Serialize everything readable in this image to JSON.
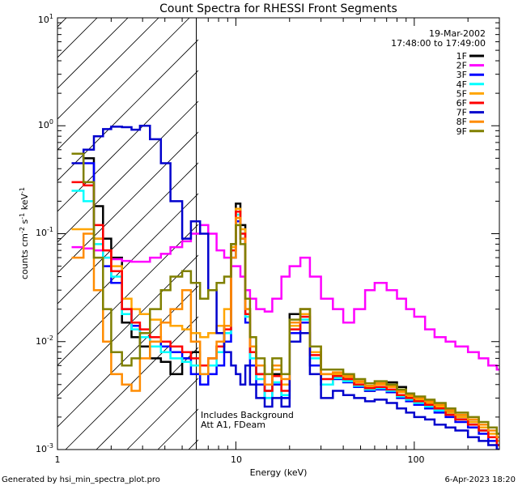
{
  "footer": {
    "generator": "Generated by hsi_min_spectra_plot.pro",
    "timestamp": "6-Apr-2023 18:20"
  },
  "chart_data": {
    "type": "line",
    "title": "Count Spectra for RHESSI Front Segments",
    "xlabel": "Energy (keV)",
    "ylabel": "counts cm",
    "ylabel_exp1": "-2",
    "ylabel_mid": " s",
    "ylabel_exp2": "-1",
    "ylabel_unit": " keV",
    "ylabel_exp3": "-1",
    "x_scale": "log",
    "y_scale": "log",
    "xlim": [
      1,
      300
    ],
    "ylim": [
      0.001,
      10
    ],
    "x_tick_labels": [
      "1",
      "10",
      "100"
    ],
    "y_tick_labels": [
      {
        "base": "10",
        "exp": "-3"
      },
      {
        "base": "10",
        "exp": "-2"
      },
      {
        "base": "10",
        "exp": "-1"
      },
      {
        "base": "10",
        "exp": "0"
      },
      {
        "base": "10",
        "exp": "1"
      }
    ],
    "date": "19-Mar-2002",
    "time_range": "17:48:00 to 17:49:00",
    "annotations": [
      "Includes Background",
      "Att A1, FDeam"
    ],
    "hatched_region_keV": [
      1,
      6
    ],
    "legend_position": "top-right",
    "series": [
      {
        "name": "1F",
        "color": "#000000",
        "x": [
          1.2,
          1.4,
          1.6,
          1.8,
          2.0,
          2.3,
          2.6,
          2.9,
          3.3,
          3.8,
          4.3,
          5.0,
          5.6,
          6.3,
          7.0,
          7.8,
          8.6,
          9.4,
          10.0,
          10.6,
          11.3,
          12.0,
          13.0,
          14.5,
          16.0,
          18.0,
          20.0,
          23.0,
          26.0,
          30.0,
          35.0,
          40.0,
          46.0,
          53.0,
          60.0,
          70.0,
          80.0,
          90.0,
          100.0,
          115.0,
          130.0,
          150.0,
          170.0,
          200.0,
          230.0,
          260.0,
          290.0
        ],
        "y": [
          0.55,
          0.5,
          0.18,
          0.09,
          0.06,
          0.015,
          0.011,
          0.009,
          0.007,
          0.0065,
          0.005,
          0.007,
          0.008,
          0.006,
          0.007,
          0.009,
          0.014,
          0.08,
          0.19,
          0.12,
          0.02,
          0.008,
          0.005,
          0.0035,
          0.005,
          0.003,
          0.018,
          0.02,
          0.008,
          0.004,
          0.005,
          0.0045,
          0.004,
          0.0035,
          0.004,
          0.0042,
          0.0038,
          0.0033,
          0.003,
          0.0028,
          0.0025,
          0.0022,
          0.002,
          0.0018,
          0.0015,
          0.0013,
          0.0011
        ]
      },
      {
        "name": "2F",
        "color": "#ff00ff",
        "x": [
          1.2,
          1.4,
          1.6,
          1.8,
          2.0,
          2.3,
          2.6,
          2.9,
          3.3,
          3.8,
          4.3,
          5.0,
          5.6,
          6.3,
          7.0,
          7.8,
          8.6,
          9.4,
          10.0,
          10.6,
          11.3,
          12.0,
          13.0,
          14.5,
          16.0,
          18.0,
          20.0,
          23.0,
          26.0,
          30.0,
          35.0,
          40.0,
          46.0,
          53.0,
          60.0,
          70.0,
          80.0,
          90.0,
          100.0,
          115.0,
          130.0,
          150.0,
          170.0,
          200.0,
          230.0,
          260.0,
          290.0
        ],
        "y": [
          0.075,
          0.073,
          0.07,
          0.06,
          0.058,
          0.056,
          0.055,
          0.055,
          0.06,
          0.065,
          0.075,
          0.085,
          0.1,
          0.12,
          0.1,
          0.07,
          0.06,
          0.05,
          0.05,
          0.04,
          0.03,
          0.025,
          0.02,
          0.019,
          0.025,
          0.04,
          0.05,
          0.06,
          0.04,
          0.025,
          0.02,
          0.015,
          0.02,
          0.03,
          0.035,
          0.03,
          0.025,
          0.02,
          0.017,
          0.013,
          0.011,
          0.01,
          0.009,
          0.008,
          0.007,
          0.006,
          0.0055
        ]
      },
      {
        "name": "3F",
        "color": "#0000ff",
        "x": [
          1.2,
          1.4,
          1.6,
          1.8,
          2.0,
          2.3,
          2.6,
          2.9,
          3.3,
          3.8,
          4.3,
          5.0,
          5.6,
          6.3,
          7.0,
          7.8,
          8.6,
          9.4,
          10.0,
          10.6,
          11.3,
          12.0,
          13.0,
          14.5,
          16.0,
          18.0,
          20.0,
          23.0,
          26.0,
          30.0,
          35.0,
          40.0,
          46.0,
          53.0,
          60.0,
          70.0,
          80.0,
          90.0,
          100.0,
          115.0,
          130.0,
          150.0,
          170.0,
          200.0,
          230.0,
          260.0,
          290.0
        ],
        "y": [
          0.55,
          0.45,
          0.09,
          0.05,
          0.035,
          0.02,
          0.014,
          0.012,
          0.01,
          0.009,
          0.008,
          0.007,
          0.005,
          0.004,
          0.005,
          0.006,
          0.01,
          0.06,
          0.13,
          0.09,
          0.015,
          0.006,
          0.004,
          0.003,
          0.004,
          0.003,
          0.012,
          0.015,
          0.006,
          0.004,
          0.0045,
          0.0042,
          0.0038,
          0.0035,
          0.0036,
          0.0034,
          0.003,
          0.0028,
          0.0026,
          0.0024,
          0.0022,
          0.002,
          0.0018,
          0.0016,
          0.0014,
          0.0012,
          0.001
        ]
      },
      {
        "name": "4F",
        "color": "#00ffff",
        "x": [
          1.2,
          1.4,
          1.6,
          1.8,
          2.0,
          2.3,
          2.6,
          2.9,
          3.3,
          3.8,
          4.3,
          5.0,
          5.6,
          6.3,
          7.0,
          7.8,
          8.6,
          9.4,
          10.0,
          10.6,
          11.3,
          12.0,
          13.0,
          14.5,
          16.0,
          18.0,
          20.0,
          23.0,
          26.0,
          30.0,
          35.0,
          40.0,
          46.0,
          53.0,
          60.0,
          70.0,
          80.0,
          90.0,
          100.0,
          115.0,
          130.0,
          150.0,
          170.0,
          200.0,
          230.0,
          260.0,
          290.0
        ],
        "y": [
          0.25,
          0.2,
          0.08,
          0.06,
          0.04,
          0.018,
          0.013,
          0.011,
          0.009,
          0.008,
          0.007,
          0.0065,
          0.006,
          0.005,
          0.006,
          0.008,
          0.012,
          0.07,
          0.15,
          0.1,
          0.017,
          0.007,
          0.0045,
          0.003,
          0.0042,
          0.0032,
          0.013,
          0.016,
          0.007,
          0.004,
          0.0046,
          0.0043,
          0.0039,
          0.0036,
          0.0037,
          0.0035,
          0.0031,
          0.0029,
          0.0027,
          0.0025,
          0.0023,
          0.0021,
          0.0019,
          0.0017,
          0.0015,
          0.0013,
          0.0011
        ]
      },
      {
        "name": "5F",
        "color": "#ffa500",
        "x": [
          1.2,
          1.4,
          1.6,
          1.8,
          2.0,
          2.3,
          2.6,
          2.9,
          3.3,
          3.8,
          4.3,
          5.0,
          5.6,
          6.3,
          7.0,
          7.8,
          8.6,
          9.4,
          10.0,
          10.6,
          11.3,
          12.0,
          13.0,
          14.5,
          16.0,
          18.0,
          20.0,
          23.0,
          26.0,
          30.0,
          35.0,
          40.0,
          46.0,
          53.0,
          60.0,
          70.0,
          80.0,
          90.0,
          100.0,
          115.0,
          130.0,
          150.0,
          170.0,
          200.0,
          230.0,
          260.0,
          290.0
        ],
        "y": [
          0.11,
          0.11,
          0.09,
          0.07,
          0.05,
          0.025,
          0.02,
          0.018,
          0.016,
          0.015,
          0.014,
          0.013,
          0.012,
          0.011,
          0.012,
          0.014,
          0.02,
          0.075,
          0.17,
          0.11,
          0.02,
          0.009,
          0.006,
          0.004,
          0.0055,
          0.004,
          0.014,
          0.018,
          0.008,
          0.005,
          0.005,
          0.0047,
          0.0042,
          0.0038,
          0.004,
          0.0038,
          0.0034,
          0.0031,
          0.0029,
          0.0027,
          0.0025,
          0.0022,
          0.002,
          0.0018,
          0.0016,
          0.0014,
          0.0012
        ]
      },
      {
        "name": "6F",
        "color": "#ff0000",
        "x": [
          1.2,
          1.4,
          1.6,
          1.8,
          2.0,
          2.3,
          2.6,
          2.9,
          3.3,
          3.8,
          4.3,
          5.0,
          5.6,
          6.3,
          7.0,
          7.8,
          8.6,
          9.4,
          10.0,
          10.6,
          11.3,
          12.0,
          13.0,
          14.5,
          16.0,
          18.0,
          20.0,
          23.0,
          26.0,
          30.0,
          35.0,
          40.0,
          46.0,
          53.0,
          60.0,
          70.0,
          80.0,
          90.0,
          100.0,
          115.0,
          130.0,
          150.0,
          170.0,
          200.0,
          230.0,
          260.0,
          290.0
        ],
        "y": [
          0.3,
          0.28,
          0.12,
          0.07,
          0.045,
          0.02,
          0.015,
          0.013,
          0.011,
          0.01,
          0.009,
          0.008,
          0.007,
          0.006,
          0.007,
          0.009,
          0.013,
          0.07,
          0.16,
          0.1,
          0.018,
          0.008,
          0.005,
          0.0035,
          0.0048,
          0.0035,
          0.013,
          0.017,
          0.0075,
          0.0045,
          0.0048,
          0.0045,
          0.004,
          0.0037,
          0.0038,
          0.0036,
          0.0032,
          0.003,
          0.0028,
          0.0026,
          0.0024,
          0.0021,
          0.0019,
          0.0017,
          0.0015,
          0.0013,
          0.0011
        ]
      },
      {
        "name": "7F",
        "color": "#0000cd",
        "x": [
          1.2,
          1.4,
          1.6,
          1.8,
          2.0,
          2.3,
          2.6,
          2.9,
          3.3,
          3.8,
          4.3,
          5.0,
          5.6,
          6.3,
          7.0,
          7.8,
          8.6,
          9.4,
          10.0,
          10.6,
          11.3,
          12.0,
          13.0,
          14.5,
          16.0,
          18.0,
          20.0,
          23.0,
          26.0,
          30.0,
          35.0,
          40.0,
          46.0,
          53.0,
          60.0,
          70.0,
          80.0,
          90.0,
          100.0,
          115.0,
          130.0,
          150.0,
          170.0,
          200.0,
          230.0,
          260.0,
          290.0
        ],
        "y": [
          0.45,
          0.6,
          0.8,
          0.93,
          0.98,
          0.97,
          0.92,
          1.0,
          0.75,
          0.45,
          0.2,
          0.09,
          0.13,
          0.1,
          0.03,
          0.012,
          0.008,
          0.006,
          0.005,
          0.004,
          0.006,
          0.004,
          0.003,
          0.0025,
          0.003,
          0.0025,
          0.01,
          0.012,
          0.005,
          0.003,
          0.0035,
          0.0032,
          0.003,
          0.0028,
          0.0029,
          0.0027,
          0.0024,
          0.0022,
          0.002,
          0.0019,
          0.0017,
          0.0016,
          0.0015,
          0.0013,
          0.0012,
          0.0011,
          0.001
        ]
      },
      {
        "name": "8F",
        "color": "#ff8c00",
        "x": [
          1.2,
          1.4,
          1.6,
          1.8,
          2.0,
          2.3,
          2.6,
          2.9,
          3.3,
          3.8,
          4.3,
          5.0,
          5.6,
          6.3,
          7.0,
          7.8,
          8.6,
          9.4,
          10.0,
          10.6,
          11.3,
          12.0,
          13.0,
          14.5,
          16.0,
          18.0,
          20.0,
          23.0,
          26.0,
          30.0,
          35.0,
          40.0,
          46.0,
          53.0,
          60.0,
          70.0,
          80.0,
          90.0,
          100.0,
          115.0,
          130.0,
          150.0,
          170.0,
          200.0,
          230.0,
          260.0,
          290.0
        ],
        "y": [
          0.06,
          0.1,
          0.03,
          0.01,
          0.005,
          0.004,
          0.0035,
          0.007,
          0.01,
          0.015,
          0.02,
          0.03,
          0.01,
          0.005,
          0.007,
          0.01,
          0.014,
          0.06,
          0.14,
          0.09,
          0.02,
          0.009,
          0.006,
          0.004,
          0.006,
          0.0045,
          0.015,
          0.02,
          0.009,
          0.005,
          0.0052,
          0.0048,
          0.0043,
          0.0039,
          0.0041,
          0.0039,
          0.0035,
          0.0032,
          0.003,
          0.0028,
          0.0026,
          0.0023,
          0.0021,
          0.0019,
          0.0017,
          0.0015,
          0.0013
        ]
      },
      {
        "name": "9F",
        "color": "#808000",
        "x": [
          1.2,
          1.4,
          1.6,
          1.8,
          2.0,
          2.3,
          2.6,
          2.9,
          3.3,
          3.8,
          4.3,
          5.0,
          5.6,
          6.3,
          7.0,
          7.8,
          8.6,
          9.4,
          10.0,
          10.6,
          11.3,
          12.0,
          13.0,
          14.5,
          16.0,
          18.0,
          20.0,
          23.0,
          26.0,
          30.0,
          35.0,
          40.0,
          46.0,
          53.0,
          60.0,
          70.0,
          80.0,
          90.0,
          100.0,
          115.0,
          130.0,
          150.0,
          170.0,
          200.0,
          230.0,
          260.0,
          290.0
        ],
        "y": [
          0.55,
          0.3,
          0.06,
          0.02,
          0.008,
          0.006,
          0.007,
          0.012,
          0.02,
          0.03,
          0.04,
          0.045,
          0.035,
          0.025,
          0.03,
          0.035,
          0.04,
          0.08,
          0.12,
          0.08,
          0.025,
          0.011,
          0.007,
          0.005,
          0.007,
          0.005,
          0.016,
          0.02,
          0.009,
          0.0055,
          0.0055,
          0.005,
          0.0045,
          0.0041,
          0.0043,
          0.004,
          0.0036,
          0.0033,
          0.0031,
          0.0029,
          0.0027,
          0.0024,
          0.0022,
          0.002,
          0.0018,
          0.0016,
          0.0014
        ]
      }
    ]
  }
}
